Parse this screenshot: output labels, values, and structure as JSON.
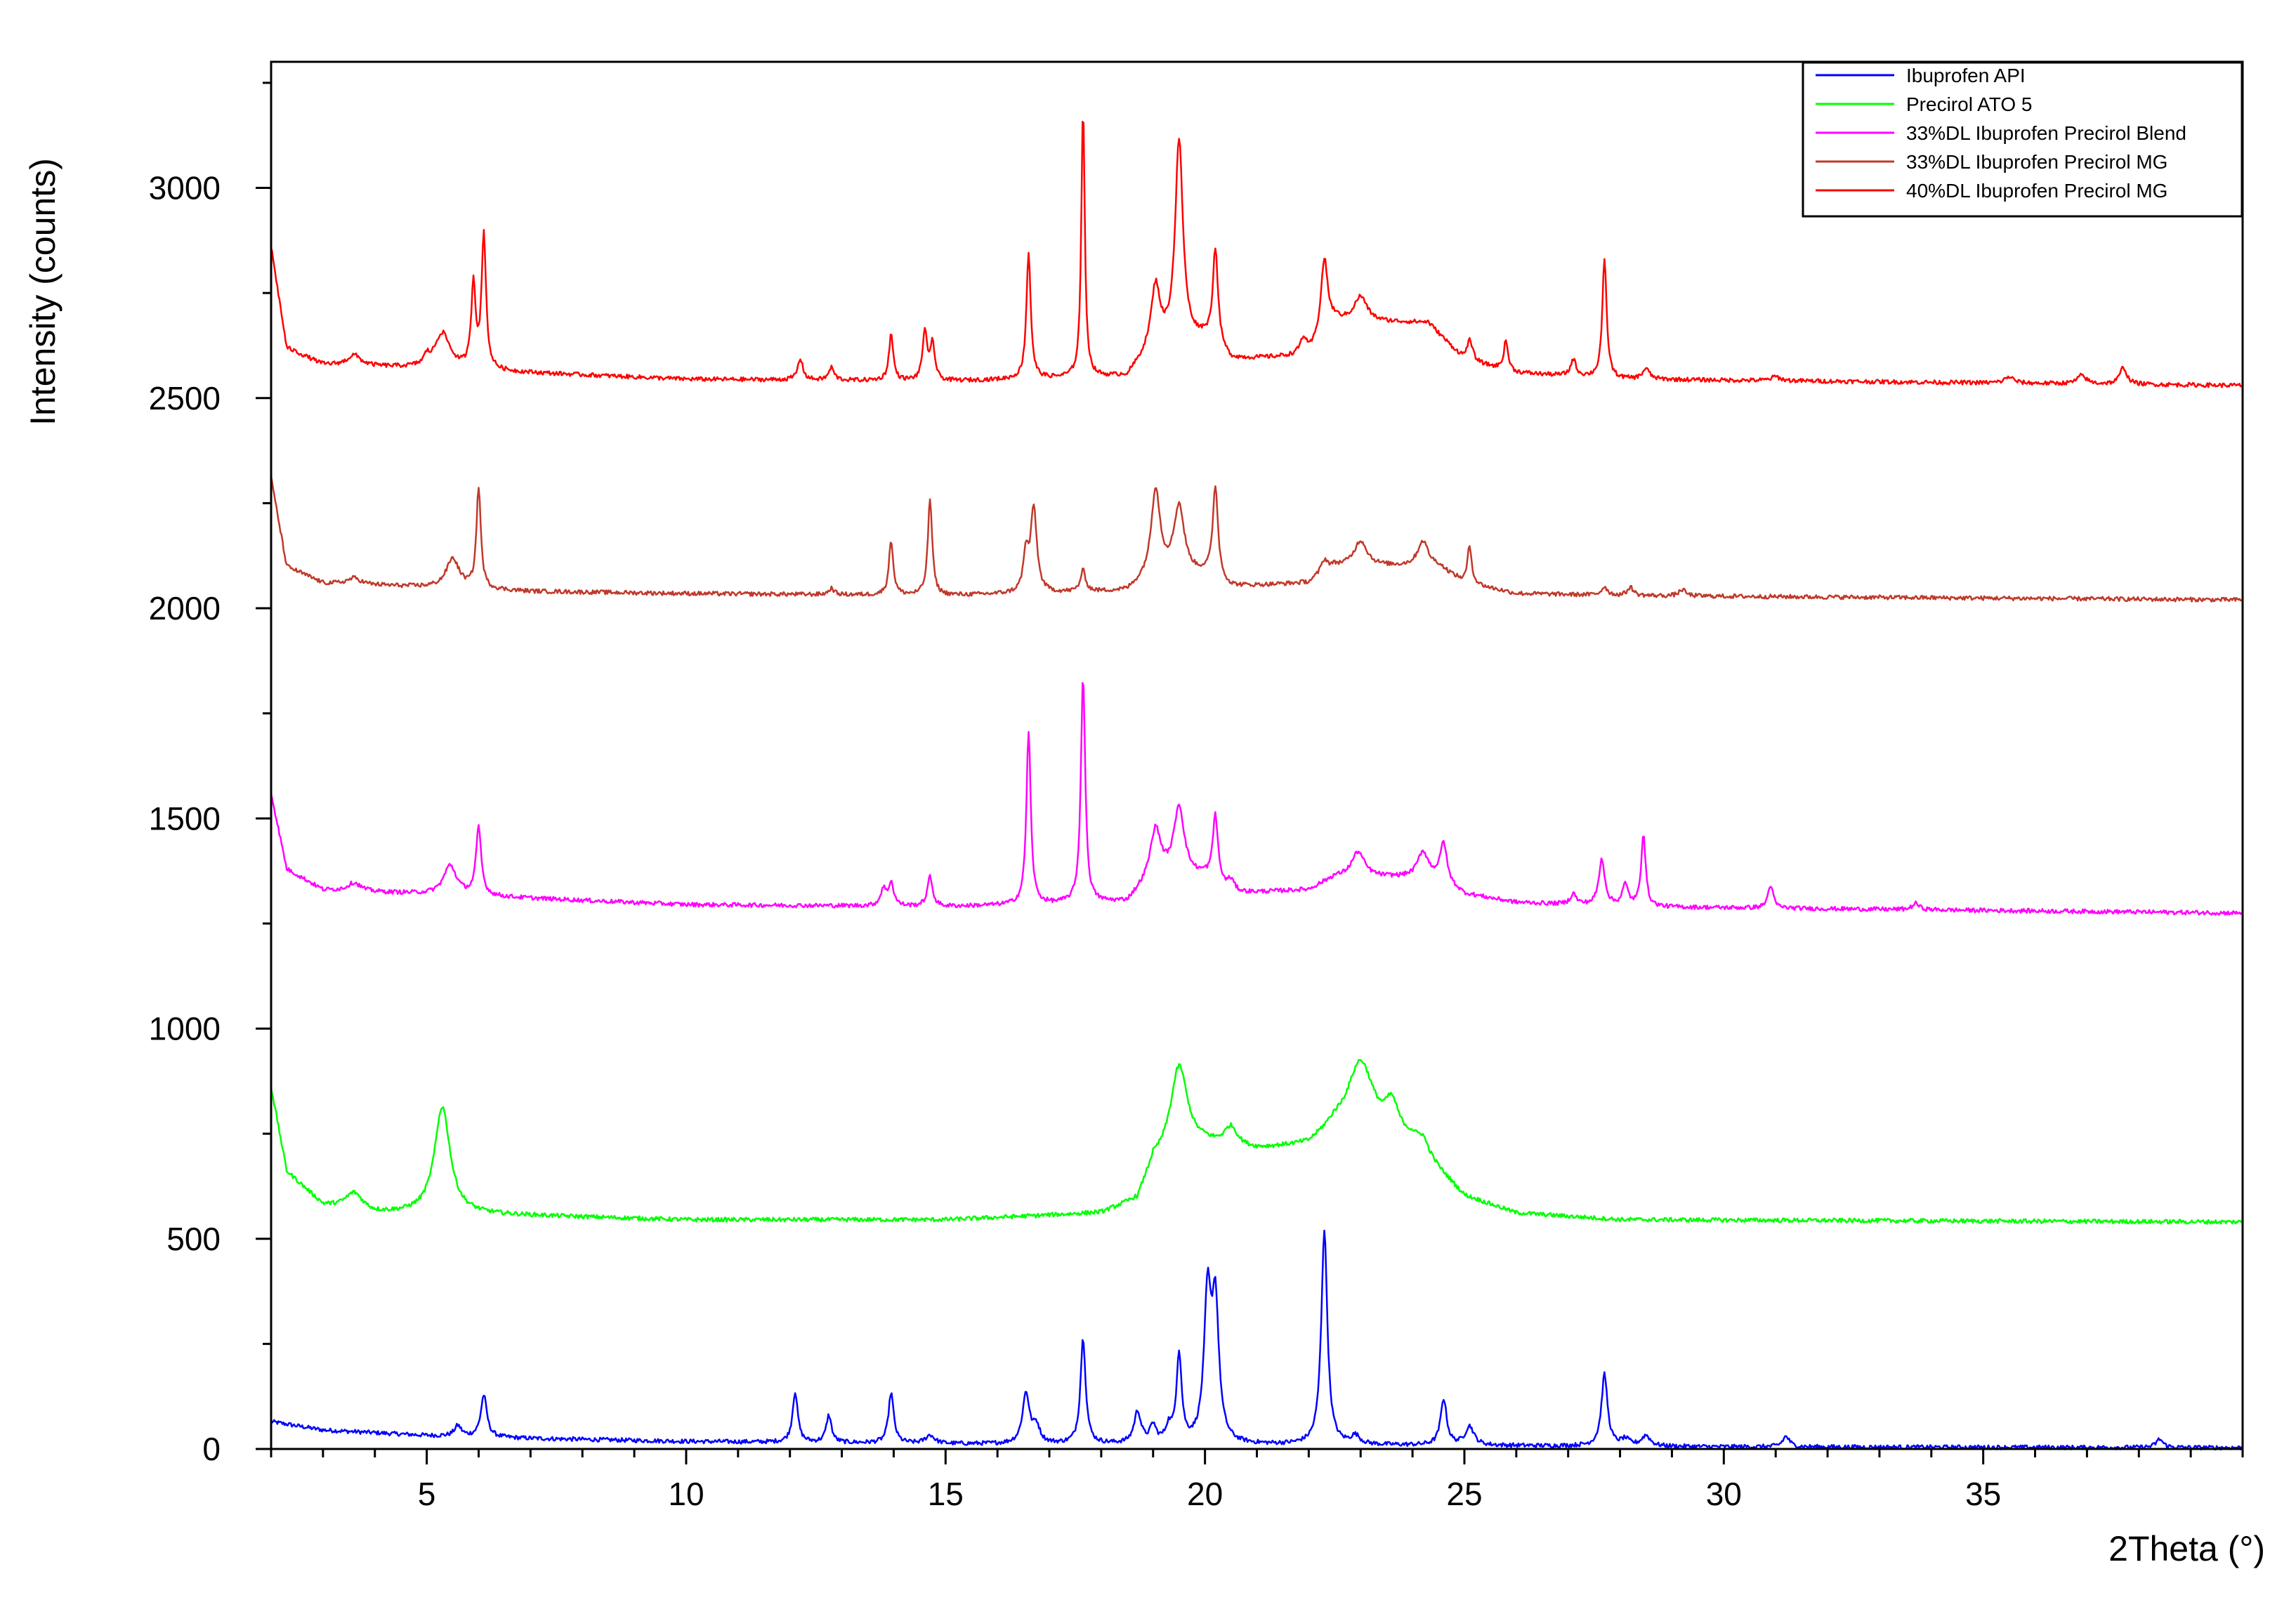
{
  "chart_data": {
    "type": "line",
    "title": "",
    "xlabel": "2Theta (°)",
    "ylabel": "Intensity (counts)",
    "xlim": [
      2,
      40
    ],
    "ylim": [
      0,
      3300
    ],
    "x_ticks": [
      5,
      10,
      15,
      20,
      25,
      30,
      35
    ],
    "x_tick_labels": [
      "5",
      "10",
      "15",
      "20",
      "25",
      "30",
      "35"
    ],
    "y_ticks": [
      0,
      500,
      1000,
      1500,
      2000,
      2500,
      3000
    ],
    "y_tick_labels": [
      "0",
      "500",
      "1000",
      "1500",
      "2000",
      "2500",
      "3000"
    ],
    "grid": false,
    "legend_position": "top-right",
    "series": [
      {
        "name": "Ibuprofen API",
        "color": "#0000ff",
        "baseline": [
          [
            2.0,
            65
          ],
          [
            3.0,
            45
          ],
          [
            5.0,
            32
          ],
          [
            7.0,
            25
          ],
          [
            10.0,
            18
          ],
          [
            15.0,
            12
          ],
          [
            20.0,
            10
          ],
          [
            25.0,
            8
          ],
          [
            30.0,
            5
          ],
          [
            35.0,
            4
          ],
          [
            40.0,
            3
          ]
        ],
        "peaks": [
          [
            5.6,
            25,
            0.08
          ],
          [
            6.1,
            100,
            0.07
          ],
          [
            12.1,
            120,
            0.06
          ],
          [
            12.75,
            65,
            0.06
          ],
          [
            13.95,
            120,
            0.06
          ],
          [
            14.7,
            20,
            0.1
          ],
          [
            16.55,
            120,
            0.08
          ],
          [
            16.75,
            40,
            0.08
          ],
          [
            17.65,
            250,
            0.06
          ],
          [
            18.7,
            75,
            0.08
          ],
          [
            19.0,
            40,
            0.07
          ],
          [
            19.3,
            35,
            0.07
          ],
          [
            19.5,
            210,
            0.06
          ],
          [
            20.05,
            340,
            0.08
          ],
          [
            20.2,
            320,
            0.08
          ],
          [
            22.3,
            510,
            0.07
          ],
          [
            22.9,
            20,
            0.1
          ],
          [
            24.6,
            110,
            0.07
          ],
          [
            25.1,
            45,
            0.1
          ],
          [
            27.7,
            170,
            0.07
          ],
          [
            28.1,
            15,
            0.1
          ],
          [
            28.5,
            25,
            0.1
          ],
          [
            31.2,
            25,
            0.08
          ],
          [
            38.4,
            20,
            0.08
          ]
        ]
      },
      {
        "name": "Precirol ATO 5",
        "color": "#00ff00",
        "baseline": [
          [
            2.0,
            860
          ],
          [
            2.3,
            660
          ],
          [
            3.0,
            580
          ],
          [
            4.0,
            560
          ],
          [
            5.0,
            560
          ],
          [
            7.0,
            555
          ],
          [
            10.0,
            545
          ],
          [
            15.0,
            545
          ],
          [
            18.0,
            560
          ],
          [
            18.7,
            590
          ],
          [
            19.0,
            680
          ],
          [
            20.0,
            720
          ],
          [
            21.0,
            710
          ],
          [
            22.0,
            720
          ],
          [
            22.5,
            760
          ],
          [
            24.0,
            730
          ],
          [
            24.6,
            650
          ],
          [
            25.0,
            600
          ],
          [
            26.0,
            560
          ],
          [
            28.0,
            545
          ],
          [
            40.0,
            540
          ]
        ],
        "peaks": [
          [
            3.6,
            40,
            0.2
          ],
          [
            5.3,
            255,
            0.18
          ],
          [
            19.5,
            210,
            0.2
          ],
          [
            20.5,
            45,
            0.15
          ],
          [
            23.0,
            170,
            0.3
          ],
          [
            23.6,
            70,
            0.15
          ],
          [
            24.2,
            30,
            0.12
          ]
        ]
      },
      {
        "name": "33%DL Ibuprofen Precirol Blend",
        "color": "#ff00ff",
        "baseline": [
          [
            2.0,
            1560
          ],
          [
            2.3,
            1380
          ],
          [
            3.0,
            1330
          ],
          [
            5.0,
            1320
          ],
          [
            7.0,
            1310
          ],
          [
            10.0,
            1295
          ],
          [
            15.0,
            1290
          ],
          [
            18.5,
            1300
          ],
          [
            19.0,
            1360
          ],
          [
            20.0,
            1360
          ],
          [
            20.5,
            1320
          ],
          [
            22.0,
            1330
          ],
          [
            22.5,
            1360
          ],
          [
            24.5,
            1360
          ],
          [
            25.0,
            1320
          ],
          [
            26.0,
            1300
          ],
          [
            28.0,
            1290
          ],
          [
            40.0,
            1275
          ]
        ],
        "peaks": [
          [
            3.6,
            20,
            0.15
          ],
          [
            5.45,
            70,
            0.15
          ],
          [
            6.0,
            160,
            0.06
          ],
          [
            13.8,
            40,
            0.06
          ],
          [
            13.95,
            55,
            0.06
          ],
          [
            14.7,
            70,
            0.06
          ],
          [
            16.6,
            410,
            0.05
          ],
          [
            17.65,
            540,
            0.05
          ],
          [
            19.05,
            110,
            0.12
          ],
          [
            19.5,
            165,
            0.12
          ],
          [
            20.2,
            160,
            0.06
          ],
          [
            20.5,
            30,
            0.08
          ],
          [
            22.95,
            60,
            0.15
          ],
          [
            24.2,
            60,
            0.12
          ],
          [
            24.6,
            90,
            0.07
          ],
          [
            27.1,
            25,
            0.07
          ],
          [
            27.65,
            110,
            0.07
          ],
          [
            28.1,
            50,
            0.07
          ],
          [
            28.45,
            175,
            0.05
          ],
          [
            30.9,
            55,
            0.06
          ],
          [
            33.7,
            15,
            0.08
          ]
        ]
      },
      {
        "name": "33%DL Ibuprofen Precirol MG",
        "color": "#c0392b",
        "baseline": [
          [
            2.0,
            2310
          ],
          [
            2.3,
            2100
          ],
          [
            3.0,
            2060
          ],
          [
            5.0,
            2050
          ],
          [
            7.0,
            2040
          ],
          [
            10.0,
            2035
          ],
          [
            15.0,
            2030
          ],
          [
            18.5,
            2040
          ],
          [
            19.0,
            2080
          ],
          [
            20.0,
            2080
          ],
          [
            20.5,
            2050
          ],
          [
            22.0,
            2060
          ],
          [
            22.5,
            2100
          ],
          [
            24.5,
            2100
          ],
          [
            25.0,
            2060
          ],
          [
            26.0,
            2035
          ],
          [
            28.0,
            2030
          ],
          [
            40.0,
            2020
          ]
        ],
        "peaks": [
          [
            3.6,
            15,
            0.15
          ],
          [
            5.5,
            70,
            0.15
          ],
          [
            6.0,
            240,
            0.05
          ],
          [
            12.8,
            15,
            0.06
          ],
          [
            13.95,
            130,
            0.05
          ],
          [
            14.7,
            230,
            0.05
          ],
          [
            16.55,
            90,
            0.06
          ],
          [
            16.7,
            200,
            0.07
          ],
          [
            17.65,
            50,
            0.06
          ],
          [
            19.05,
            200,
            0.1
          ],
          [
            19.5,
            160,
            0.12
          ],
          [
            20.2,
            220,
            0.06
          ],
          [
            22.3,
            30,
            0.08
          ],
          [
            23.0,
            60,
            0.15
          ],
          [
            24.2,
            60,
            0.12
          ],
          [
            25.1,
            90,
            0.05
          ],
          [
            27.7,
            20,
            0.07
          ],
          [
            28.2,
            20,
            0.07
          ],
          [
            29.2,
            15,
            0.08
          ]
        ]
      },
      {
        "name": "40%DL Ibuprofen Precirol MG",
        "color": "#ff0000",
        "baseline": [
          [
            2.0,
            2860
          ],
          [
            2.3,
            2620
          ],
          [
            3.0,
            2580
          ],
          [
            5.0,
            2570
          ],
          [
            7.0,
            2560
          ],
          [
            10.0,
            2545
          ],
          [
            15.0,
            2540
          ],
          [
            18.5,
            2550
          ],
          [
            19.0,
            2620
          ],
          [
            20.0,
            2640
          ],
          [
            20.5,
            2590
          ],
          [
            22.0,
            2600
          ],
          [
            22.5,
            2680
          ],
          [
            24.3,
            2680
          ],
          [
            25.0,
            2590
          ],
          [
            26.0,
            2560
          ],
          [
            28.0,
            2545
          ],
          [
            40.0,
            2530
          ]
        ],
        "peaks": [
          [
            3.6,
            25,
            0.15
          ],
          [
            5.0,
            20,
            0.06
          ],
          [
            5.3,
            85,
            0.18
          ],
          [
            5.9,
            200,
            0.05
          ],
          [
            6.1,
            320,
            0.05
          ],
          [
            12.2,
            50,
            0.06
          ],
          [
            12.8,
            30,
            0.06
          ],
          [
            13.95,
            110,
            0.05
          ],
          [
            14.6,
            120,
            0.05
          ],
          [
            14.75,
            90,
            0.05
          ],
          [
            16.6,
            300,
            0.05
          ],
          [
            17.65,
            640,
            0.04
          ],
          [
            19.05,
            140,
            0.1
          ],
          [
            19.5,
            480,
            0.09
          ],
          [
            20.2,
            230,
            0.06
          ],
          [
            21.9,
            40,
            0.08
          ],
          [
            22.3,
            180,
            0.08
          ],
          [
            23.0,
            60,
            0.15
          ],
          [
            25.1,
            50,
            0.07
          ],
          [
            25.8,
            70,
            0.05
          ],
          [
            27.1,
            40,
            0.06
          ],
          [
            27.7,
            280,
            0.05
          ],
          [
            28.5,
            25,
            0.08
          ],
          [
            31.0,
            10,
            0.1
          ],
          [
            35.5,
            15,
            0.1
          ],
          [
            36.9,
            20,
            0.1
          ],
          [
            37.7,
            40,
            0.08
          ]
        ]
      }
    ]
  }
}
